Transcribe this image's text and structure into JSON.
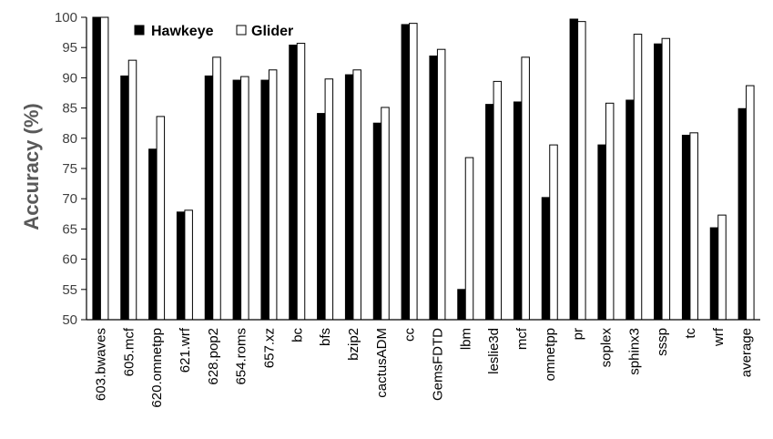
{
  "chart_data": {
    "type": "bar",
    "title": "",
    "xlabel": "",
    "ylabel": "Accuracy (%)",
    "ylim": [
      50,
      100
    ],
    "yticks": [
      50,
      55,
      60,
      65,
      70,
      75,
      80,
      85,
      90,
      95,
      100
    ],
    "grid": false,
    "legend_position": "top-left",
    "categories": [
      "603.bwaves",
      "605.mcf",
      "620.omnetpp",
      "621.wrf",
      "628.pop2",
      "654.roms",
      "657.xz",
      "bc",
      "bfs",
      "bzip2",
      "cactusADM",
      "cc",
      "GemsFDTD",
      "lbm",
      "leslie3d",
      "mcf",
      "omnetpp",
      "pr",
      "soplex",
      "sphinx3",
      "sssp",
      "tc",
      "wrf",
      "average"
    ],
    "series": [
      {
        "name": "Hawkeye",
        "color": "#000000",
        "values": [
          100,
          90.3,
          78.2,
          67.8,
          90.3,
          89.6,
          89.6,
          95.4,
          84.1,
          90.5,
          82.5,
          98.8,
          93.6,
          55.0,
          85.6,
          86.0,
          70.2,
          99.7,
          78.9,
          86.3,
          95.6,
          80.5,
          65.2,
          84.9
        ]
      },
      {
        "name": "Glider",
        "color": "#ffffff",
        "values": [
          100,
          92.9,
          83.6,
          68.1,
          93.4,
          90.2,
          91.3,
          95.7,
          89.8,
          91.3,
          85.1,
          99.0,
          94.7,
          76.8,
          89.4,
          93.4,
          78.9,
          99.3,
          85.8,
          97.2,
          96.5,
          80.9,
          67.3,
          88.7
        ]
      }
    ]
  }
}
